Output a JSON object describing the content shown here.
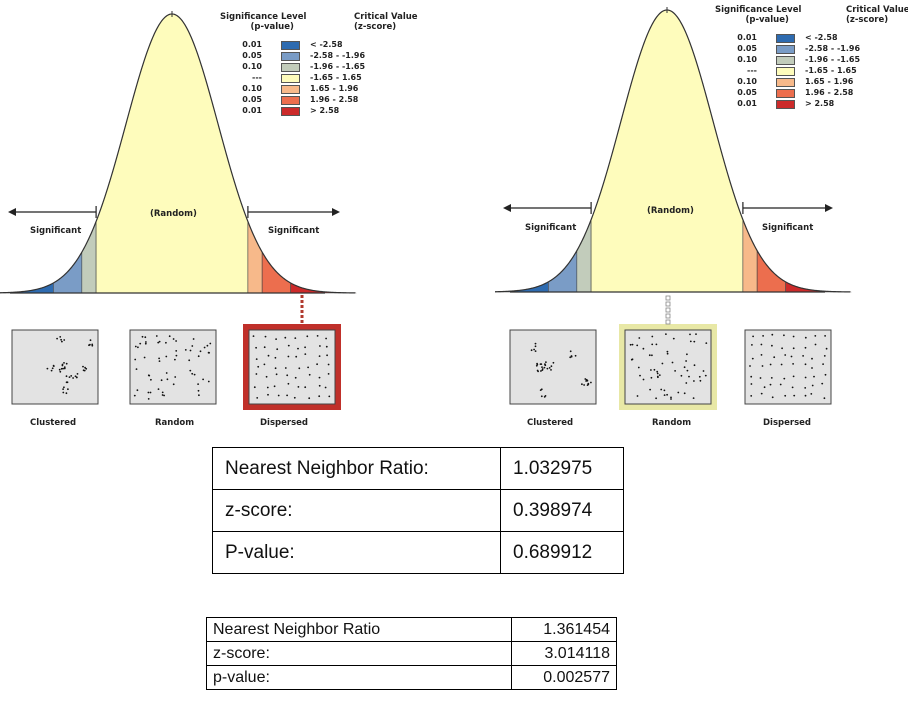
{
  "legend": {
    "header_sig": "Significance Level",
    "header_sig_sub": "(p-value)",
    "header_crit": "Critical Value",
    "header_crit_sub": "(z-score)",
    "rows": [
      {
        "p": "0.01",
        "z": "< -2.58",
        "color": "#2e6bb0"
      },
      {
        "p": "0.05",
        "z": "-2.58 - -1.96",
        "color": "#7a9cc6"
      },
      {
        "p": "0.10",
        "z": "-1.96 - -1.65",
        "color": "#c2ccbb"
      },
      {
        "p": "---",
        "z": "-1.65 - 1.65",
        "color": "#fefcbc"
      },
      {
        "p": "0.10",
        "z": "1.65 - 1.96",
        "color": "#f7b98a"
      },
      {
        "p": "0.05",
        "z": "1.96 - 2.58",
        "color": "#ec6e4e"
      },
      {
        "p": "0.01",
        "z": "> 2.58",
        "color": "#cc2a2a"
      }
    ]
  },
  "curve_labels": {
    "random": "(Random)",
    "significant_left": "Significant",
    "significant_right": "Significant"
  },
  "patterns": {
    "clustered": "Clustered",
    "random": "Random",
    "dispersed": "Dispersed"
  },
  "left_panel": {
    "highlight": "dispersed",
    "highlight_color": "#c0302a"
  },
  "right_panel": {
    "highlight": "random",
    "highlight_color": "#e8e8a6"
  },
  "table1": {
    "rows": [
      {
        "label": "Nearest Neighbor Ratio:",
        "value": "1.032975"
      },
      {
        "label": "z-score:",
        "value": "0.398974"
      },
      {
        "label": "P-value:",
        "value": "0.689912"
      }
    ]
  },
  "table2": {
    "rows": [
      {
        "label": "Nearest Neighbor Ratio",
        "value": "1.361454"
      },
      {
        "label": "z-score:",
        "value": "3.014118"
      },
      {
        "label": "p-value:",
        "value": "0.002577"
      }
    ]
  }
}
